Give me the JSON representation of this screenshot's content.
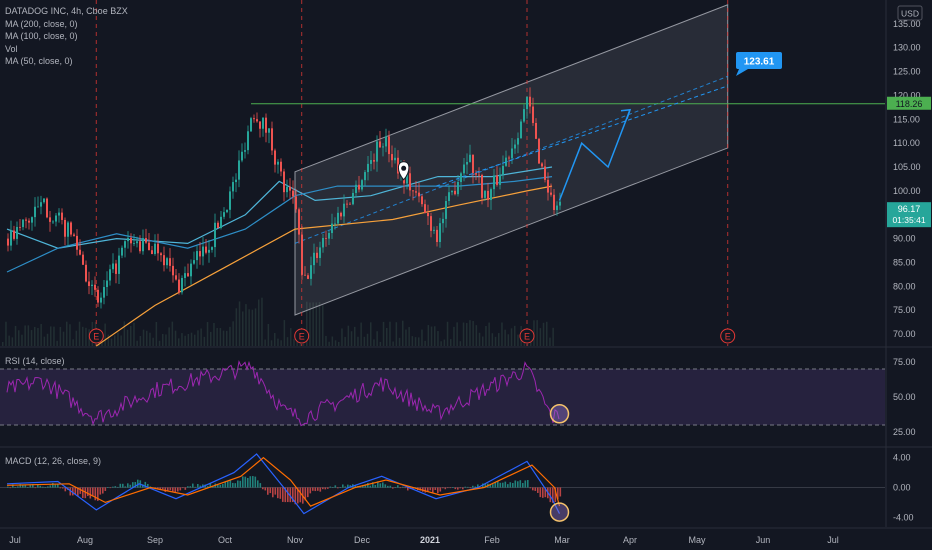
{
  "legend": {
    "title": "DATADOG INC, 4h, Cboe BZX",
    "ma200": "MA (200, close, 0)",
    "ma100": "MA (100, close, 0)",
    "vol": "Vol",
    "ma50": "MA (50, close, 0)"
  },
  "currency": "USD",
  "rsi_title": "RSI (14, close)",
  "macd_title": "MACD (12, 26, close, 9)",
  "colors": {
    "background": "#131722",
    "up": "#26a69a",
    "down": "#ef5350",
    "ma200": "#f7a13b",
    "ma100": "#2e8ec7",
    "ma50": "#4fb5d8",
    "rsi": "#9c27b0",
    "macd": "#2962ff",
    "signal": "#ff6d00",
    "resistance": "#4caf50",
    "forecast": "#2196f3",
    "earnings": "#e53935"
  },
  "chart_data": [
    {
      "type": "candlestick",
      "title": "DATADOG INC, 4h, Cboe BZX",
      "x_tick_labels": [
        "Jul",
        "Aug",
        "Sep",
        "Oct",
        "Nov",
        "Dec",
        "2021",
        "Feb",
        "Mar",
        "Apr",
        "May",
        "Jun",
        "Jul"
      ],
      "y_tick_labels": [
        "135.00",
        "130.00",
        "125.00",
        "120.00",
        "115.00",
        "110.00",
        "105.00",
        "100.00",
        "95.00",
        "90.00",
        "85.00",
        "80.00",
        "75.00",
        "70.00"
      ],
      "ylim": [
        67.5,
        140
      ],
      "price_path": [
        [
          "Jun-27",
          90
        ],
        [
          "Jul-13",
          97
        ],
        [
          "Jul-27",
          90
        ],
        [
          "Aug-06",
          76
        ],
        [
          "Aug-19",
          89
        ],
        [
          "Sep-03",
          88
        ],
        [
          "Sep-10",
          80
        ],
        [
          "Sep-25",
          90
        ],
        [
          "Oct-05",
          102
        ],
        [
          "Oct-13",
          117
        ],
        [
          "Oct-20",
          112
        ],
        [
          "Oct-27",
          100
        ],
        [
          "Nov-01",
          97
        ],
        [
          "Nov-04",
          80
        ],
        [
          "Nov-13",
          90
        ],
        [
          "Nov-27",
          100
        ],
        [
          "Dec-10",
          111
        ],
        [
          "Dec-24",
          100
        ],
        [
          "Jan-04",
          91
        ],
        [
          "Jan-19",
          108
        ],
        [
          "Jan-29",
          98
        ],
        [
          "Feb-09",
          110
        ],
        [
          "Feb-15",
          119
        ],
        [
          "Feb-19",
          108
        ],
        [
          "Feb-25",
          97
        ],
        [
          "Feb-28",
          96.17
        ]
      ],
      "moving_averages": {
        "MA (50, close, 0)": [
          [
            "Jun-27",
            92
          ],
          [
            "Jul-20",
            88
          ],
          [
            "Aug-15",
            90
          ],
          [
            "Sep-15",
            89
          ],
          [
            "Oct-10",
            95
          ],
          [
            "Oct-25",
            102
          ],
          [
            "Nov-10",
            98
          ],
          [
            "Dec-05",
            99
          ],
          [
            "Jan-05",
            103
          ],
          [
            "Feb-01",
            103
          ],
          [
            "Feb-25",
            105
          ]
        ],
        "MA (100, close, 0)": [
          [
            "Jun-27",
            83
          ],
          [
            "Jul-20",
            88
          ],
          [
            "Aug-15",
            91
          ],
          [
            "Sep-15",
            88
          ],
          [
            "Oct-10",
            92
          ],
          [
            "Nov-01",
            99
          ],
          [
            "Nov-20",
            101
          ],
          [
            "Dec-15",
            101
          ],
          [
            "Jan-15",
            101
          ],
          [
            "Feb-10",
            102
          ],
          [
            "Feb-25",
            103
          ]
        ],
        "MA (200, close, 0)": [
          [
            "Aug-06",
            67.5
          ],
          [
            "Sep-01",
            76
          ],
          [
            "Oct-01",
            84
          ],
          [
            "Nov-01",
            92
          ],
          [
            "Dec-15",
            94
          ],
          [
            "Jan-15",
            97
          ],
          [
            "Feb-15",
            100
          ],
          [
            "Feb-25",
            101
          ]
        ]
      },
      "channel": {
        "lower": [
          [
            "Nov-01",
            74
          ],
          [
            "May-15",
            109
          ]
        ],
        "upper": [
          [
            "Nov-01",
            104
          ],
          [
            "May-15",
            139
          ]
        ]
      },
      "resistance_level": 118.26,
      "current_price": 96.17,
      "countdown": "01:35:41",
      "target_label": "123.61",
      "forecast_path": [
        [
          "Feb-28",
          98
        ],
        [
          "Mar-10",
          110
        ],
        [
          "Mar-22",
          105
        ],
        [
          "Apr-01",
          117
        ]
      ],
      "earnings_marker": "E",
      "earnings_dates": [
        "Aug-06",
        "Nov-04",
        "Feb-15",
        "May-15"
      ]
    },
    {
      "type": "line",
      "title": "RSI (14, close)",
      "y_tick_labels": [
        "75.00",
        "50.00",
        "25.00"
      ],
      "ylim": [
        15,
        85
      ],
      "bands": [
        30,
        70
      ],
      "series": [
        {
          "name": "RSI (14, close)",
          "path": [
            [
              "Jun-27",
              55
            ],
            [
              "Jul-13",
              62
            ],
            [
              "Aug-06",
              35
            ],
            [
              "Sep-01",
              55
            ],
            [
              "Oct-13",
              72
            ],
            [
              "Oct-27",
              40
            ],
            [
              "Nov-04",
              35
            ],
            [
              "Dec-10",
              60
            ],
            [
              "Jan-04",
              38
            ],
            [
              "Feb-15",
              70
            ],
            [
              "Feb-25",
              35
            ],
            [
              "Feb-28",
              38
            ]
          ]
        }
      ]
    },
    {
      "type": "line",
      "title": "MACD (12, 26, close, 9)",
      "y_tick_labels": [
        "4.00",
        "0.00",
        "-4.00"
      ],
      "ylim": [
        -5.3,
        5.3
      ],
      "series": [
        {
          "name": "MACD",
          "path": [
            [
              "Jun-27",
              0.5
            ],
            [
              "Jul-20",
              0.8
            ],
            [
              "Aug-06",
              -3
            ],
            [
              "Aug-25",
              0.5
            ],
            [
              "Sep-10",
              -1.5
            ],
            [
              "Oct-05",
              2
            ],
            [
              "Oct-15",
              4.5
            ],
            [
              "Oct-27",
              0
            ],
            [
              "Nov-05",
              -3.5
            ],
            [
              "Nov-25",
              0
            ],
            [
              "Dec-10",
              1.5
            ],
            [
              "Jan-04",
              -1.5
            ],
            [
              "Jan-25",
              0
            ],
            [
              "Feb-15",
              3.5
            ],
            [
              "Feb-25",
              -1.5
            ],
            [
              "Feb-28",
              -3.5
            ]
          ]
        },
        {
          "name": "Signal",
          "path": [
            [
              "Jun-27",
              0.3
            ],
            [
              "Jul-25",
              0.5
            ],
            [
              "Aug-10",
              -2
            ],
            [
              "Aug-30",
              0
            ],
            [
              "Sep-15",
              -1
            ],
            [
              "Oct-08",
              1.5
            ],
            [
              "Oct-18",
              4
            ],
            [
              "Oct-30",
              1
            ],
            [
              "Nov-08",
              -2.5
            ],
            [
              "Nov-28",
              0
            ],
            [
              "Dec-12",
              1
            ],
            [
              "Jan-06",
              -1
            ],
            [
              "Jan-28",
              0
            ],
            [
              "Feb-17",
              3
            ],
            [
              "Feb-26",
              0
            ],
            [
              "Feb-28",
              -2.5
            ]
          ]
        }
      ]
    }
  ]
}
